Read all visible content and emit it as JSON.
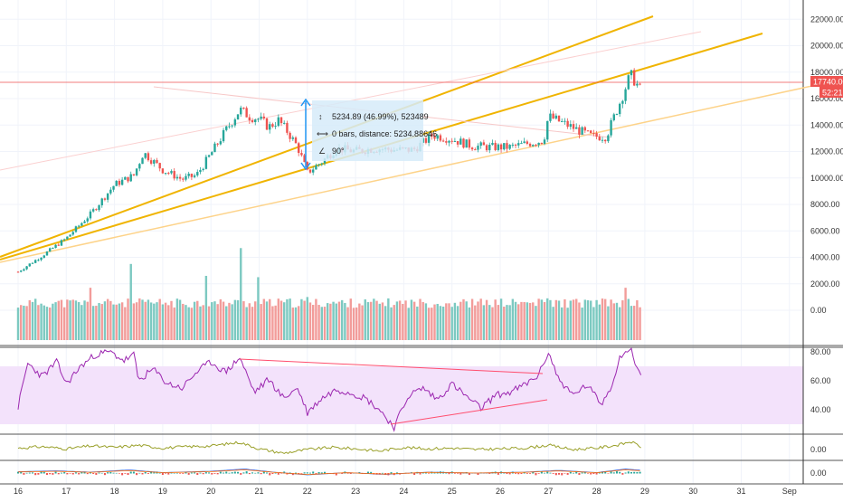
{
  "colors": {
    "up": "#26a69a",
    "down": "#ef5350",
    "trend": "#f0b400",
    "trend_light": "#fdd38a",
    "rsi_line": "#9c27b0",
    "rsi_band": "#f3e2fb",
    "diverge": "#ff4d6d",
    "osc_line": "#9aa02a",
    "price_badge": "#ef5350",
    "measure_box": "#d6ebf9",
    "measure_arrow": "#2196f3"
  },
  "price_badge": {
    "value": "17740.00",
    "timer": "52:21"
  },
  "measure": {
    "line1": "5234.89 (46.99%), 523489",
    "line2": "0 bars, distance: 5234.88646",
    "line3": "90°"
  },
  "chart_data": [
    {
      "type": "candlestick",
      "pane": "price",
      "x_labels": [
        "16",
        "17",
        "18",
        "19",
        "20",
        "21",
        "22",
        "23",
        "24",
        "25",
        "26",
        "27",
        "28",
        "29",
        "30",
        "31",
        "Sep"
      ],
      "y_ticks": [
        "22000.00",
        "20000.00",
        "18000.00",
        "16000.00",
        "14000.00",
        "12000.00",
        "10000.00",
        "8000.00",
        "6000.00",
        "4000.00",
        "2000.00",
        "0.00"
      ],
      "ylim": [
        -1000,
        23500
      ],
      "path": [
        [
          16.0,
          4300
        ],
        [
          16.5,
          5500
        ],
        [
          17.0,
          6800
        ],
        [
          17.5,
          8600
        ],
        [
          18.0,
          10800
        ],
        [
          18.4,
          11500
        ],
        [
          18.6,
          13200
        ],
        [
          19.0,
          11900
        ],
        [
          19.4,
          11200
        ],
        [
          19.7,
          11500
        ],
        [
          20.0,
          13100
        ],
        [
          20.3,
          14800
        ],
        [
          20.6,
          16400
        ],
        [
          20.8,
          15900
        ],
        [
          21.0,
          15700
        ],
        [
          21.2,
          15100
        ],
        [
          21.4,
          15600
        ],
        [
          21.6,
          14700
        ],
        [
          21.8,
          13600
        ],
        [
          22.0,
          11700
        ],
        [
          22.3,
          12500
        ],
        [
          22.6,
          13500
        ],
        [
          23.0,
          13300
        ],
        [
          23.4,
          13500
        ],
        [
          23.8,
          13400
        ],
        [
          24.2,
          13400
        ],
        [
          24.6,
          14500
        ],
        [
          25.0,
          14200
        ],
        [
          25.4,
          13700
        ],
        [
          25.8,
          13600
        ],
        [
          26.2,
          13600
        ],
        [
          26.6,
          13900
        ],
        [
          26.9,
          14100
        ],
        [
          27.0,
          15900
        ],
        [
          27.3,
          15400
        ],
        [
          27.6,
          14900
        ],
        [
          27.9,
          14400
        ],
        [
          28.2,
          14400
        ],
        [
          28.5,
          17100
        ],
        [
          28.7,
          19000
        ],
        [
          28.8,
          18500
        ],
        [
          28.95,
          17600
        ]
      ]
    },
    {
      "type": "bar",
      "pane": "volume",
      "peaks": [
        [
          16.0,
          200
        ],
        [
          17.5,
          1700
        ],
        [
          18.35,
          3500
        ],
        [
          19.9,
          2600
        ],
        [
          20.6,
          4700
        ],
        [
          21.0,
          2500
        ],
        [
          22.0,
          1000
        ],
        [
          27.0,
          900
        ],
        [
          28.6,
          1700
        ]
      ],
      "base": 600
    },
    {
      "type": "line",
      "pane": "rsi",
      "y_ticks": [
        "80.00",
        "60.00",
        "40.00"
      ],
      "band": [
        30,
        70
      ],
      "path": [
        [
          16.0,
          42
        ],
        [
          16.2,
          72
        ],
        [
          16.5,
          63
        ],
        [
          16.8,
          73
        ],
        [
          17.0,
          58
        ],
        [
          17.3,
          70
        ],
        [
          17.6,
          78
        ],
        [
          17.9,
          80
        ],
        [
          18.2,
          74
        ],
        [
          18.4,
          78
        ],
        [
          18.5,
          60
        ],
        [
          18.8,
          68
        ],
        [
          19.1,
          58
        ],
        [
          19.4,
          55
        ],
        [
          19.7,
          66
        ],
        [
          20.0,
          73
        ],
        [
          20.3,
          66
        ],
        [
          20.6,
          76
        ],
        [
          20.9,
          52
        ],
        [
          21.2,
          61
        ],
        [
          21.5,
          48
        ],
        [
          21.8,
          55
        ],
        [
          22.0,
          38
        ],
        [
          22.3,
          48
        ],
        [
          22.6,
          54
        ],
        [
          22.9,
          52
        ],
        [
          23.2,
          48
        ],
        [
          23.5,
          40
        ],
        [
          23.8,
          28
        ],
        [
          24.1,
          50
        ],
        [
          24.4,
          55
        ],
        [
          24.7,
          47
        ],
        [
          25.0,
          58
        ],
        [
          25.3,
          49
        ],
        [
          25.6,
          41
        ],
        [
          25.9,
          50
        ],
        [
          26.2,
          52
        ],
        [
          26.5,
          57
        ],
        [
          26.8,
          64
        ],
        [
          27.0,
          80
        ],
        [
          27.2,
          62
        ],
        [
          27.5,
          50
        ],
        [
          27.8,
          57
        ],
        [
          28.1,
          44
        ],
        [
          28.3,
          56
        ],
        [
          28.5,
          78
        ],
        [
          28.7,
          82
        ],
        [
          28.95,
          60
        ]
      ]
    },
    {
      "type": "line",
      "pane": "oscillator",
      "y_ticks": [
        "0.00"
      ],
      "path": [
        [
          16.0,
          0.2
        ],
        [
          16.5,
          0.4
        ],
        [
          17.0,
          0.1
        ],
        [
          17.5,
          0.5
        ],
        [
          18.0,
          0.3
        ],
        [
          18.5,
          0.6
        ],
        [
          19.0,
          0.2
        ],
        [
          19.5,
          0.4
        ],
        [
          20.0,
          0.5
        ],
        [
          20.6,
          1.0
        ],
        [
          21.0,
          0.1
        ],
        [
          21.5,
          -0.5
        ],
        [
          22.0,
          0.0
        ],
        [
          22.5,
          0.3
        ],
        [
          23.0,
          0.1
        ],
        [
          23.5,
          -0.2
        ],
        [
          24.0,
          0.3
        ],
        [
          24.5,
          0.1
        ],
        [
          25.0,
          0.2
        ],
        [
          25.5,
          0.0
        ],
        [
          26.0,
          0.1
        ],
        [
          26.5,
          0.2
        ],
        [
          27.0,
          0.6
        ],
        [
          27.5,
          0.0
        ],
        [
          28.0,
          0.2
        ],
        [
          28.5,
          0.7
        ],
        [
          28.7,
          1.1
        ],
        [
          28.95,
          0.3
        ]
      ]
    },
    {
      "type": "histogram",
      "pane": "macd",
      "y_ticks": [
        "0.00"
      ],
      "path": [
        [
          16.0,
          0.3
        ],
        [
          16.8,
          0.5
        ],
        [
          17.5,
          0.2
        ],
        [
          18.3,
          0.7
        ],
        [
          19.0,
          0.1
        ],
        [
          20.0,
          0.4
        ],
        [
          20.7,
          0.9
        ],
        [
          21.3,
          0.2
        ],
        [
          22.0,
          -0.4
        ],
        [
          22.8,
          0.1
        ],
        [
          23.6,
          -0.3
        ],
        [
          24.5,
          0.2
        ],
        [
          25.5,
          0.0
        ],
        [
          26.5,
          0.2
        ],
        [
          27.2,
          0.6
        ],
        [
          28.0,
          0.1
        ],
        [
          28.6,
          0.9
        ],
        [
          28.95,
          0.6
        ]
      ]
    }
  ]
}
